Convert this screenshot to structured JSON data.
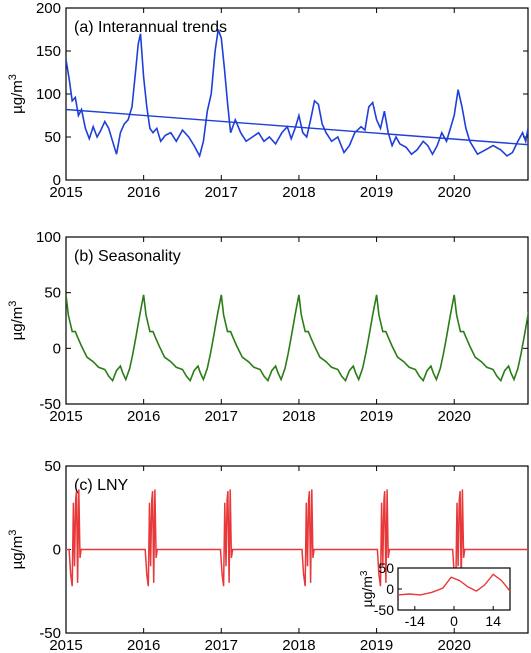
{
  "figure": {
    "ylabel_main": "µg/m",
    "ylabel_sup": "3"
  },
  "chart_data": [
    {
      "type": "line",
      "title": "(a) Interannual trends",
      "ylabel": "µg/m3",
      "xlim": [
        2015,
        2020.95
      ],
      "ylim": [
        0,
        200
      ],
      "xticks": [
        2015,
        2016,
        2017,
        2018,
        2019,
        2020
      ],
      "yticks": [
        0,
        50,
        100,
        150,
        200
      ],
      "series": [
        {
          "color": "#1f3fd8",
          "x": [
            2015.0,
            2015.04,
            2015.08,
            2015.12,
            2015.16,
            2015.2,
            2015.25,
            2015.3,
            2015.35,
            2015.4,
            2015.45,
            2015.5,
            2015.55,
            2015.6,
            2015.65,
            2015.7,
            2015.75,
            2015.8,
            2015.85,
            2015.9,
            2015.93,
            2015.96,
            2016.0,
            2016.04,
            2016.08,
            2016.12,
            2016.17,
            2016.22,
            2016.28,
            2016.35,
            2016.42,
            2016.5,
            2016.58,
            2016.65,
            2016.72,
            2016.77,
            2016.82,
            2016.87,
            2016.92,
            2016.96,
            2017.0,
            2017.04,
            2017.08,
            2017.12,
            2017.18,
            2017.25,
            2017.32,
            2017.4,
            2017.48,
            2017.55,
            2017.62,
            2017.7,
            2017.78,
            2017.85,
            2017.9,
            2017.95,
            2018.0,
            2018.05,
            2018.1,
            2018.15,
            2018.2,
            2018.25,
            2018.3,
            2018.35,
            2018.42,
            2018.5,
            2018.58,
            2018.65,
            2018.72,
            2018.8,
            2018.85,
            2018.9,
            2018.95,
            2019.0,
            2019.05,
            2019.1,
            2019.15,
            2019.2,
            2019.25,
            2019.3,
            2019.38,
            2019.45,
            2019.52,
            2019.6,
            2019.66,
            2019.72,
            2019.78,
            2019.84,
            2019.9,
            2019.95,
            2020.0,
            2020.05,
            2020.1,
            2020.15,
            2020.2,
            2020.3,
            2020.4,
            2020.5,
            2020.6,
            2020.68,
            2020.75,
            2020.82,
            2020.88,
            2020.92,
            2020.95
          ],
          "y": [
            140,
            118,
            92,
            96,
            75,
            82,
            60,
            48,
            62,
            50,
            58,
            68,
            60,
            45,
            30,
            55,
            65,
            70,
            85,
            130,
            158,
            170,
            120,
            85,
            60,
            55,
            60,
            45,
            52,
            55,
            45,
            58,
            50,
            40,
            28,
            45,
            80,
            100,
            150,
            175,
            165,
            130,
            90,
            55,
            70,
            55,
            45,
            50,
            55,
            45,
            50,
            42,
            55,
            62,
            48,
            60,
            75,
            55,
            50,
            70,
            92,
            88,
            65,
            55,
            45,
            50,
            32,
            40,
            55,
            62,
            58,
            85,
            90,
            70,
            60,
            80,
            55,
            40,
            50,
            42,
            38,
            30,
            35,
            45,
            40,
            30,
            40,
            55,
            45,
            60,
            75,
            105,
            85,
            60,
            45,
            30,
            35,
            40,
            35,
            28,
            32,
            45,
            55,
            45,
            60
          ]
        },
        {
          "name": "",
          "color": "#1f3fd8",
          "x": [
            2015.0,
            2020.95
          ],
          "y": [
            82,
            41
          ]
        }
      ]
    },
    {
      "type": "line",
      "title": "(b) Seasonality",
      "ylabel": "µg/m3",
      "xlim": [
        2015,
        2020.95
      ],
      "ylim": [
        -50,
        100
      ],
      "xticks": [
        2015,
        2016,
        2017,
        2018,
        2019,
        2020
      ],
      "yticks": [
        -50,
        0,
        50,
        100
      ],
      "series": [
        {
          "color": "#2a7d16",
          "period_cycle_x": [
            0.0,
            0.03,
            0.08,
            0.12,
            0.15,
            0.2,
            0.27,
            0.35,
            0.42,
            0.5,
            0.55,
            0.6,
            0.65,
            0.7,
            0.73,
            0.77,
            0.82,
            0.86,
            0.9,
            0.95,
            1.0
          ],
          "period_cycle_y": [
            48,
            30,
            15,
            15,
            10,
            2,
            -8,
            -12,
            -17,
            -19,
            -25,
            -29,
            -20,
            -16,
            -22,
            -28,
            -18,
            -5,
            10,
            30,
            48
          ]
        }
      ]
    },
    {
      "type": "line",
      "title": "(c) LNY",
      "ylabel": "µg/m3",
      "xlim": [
        2015,
        2020.95
      ],
      "ylim": [
        -50,
        50
      ],
      "xticks": [
        2015,
        2016,
        2017,
        2018,
        2019,
        2020
      ],
      "yticks": [
        -50,
        0,
        50
      ],
      "lny_centers": [
        2015.13,
        2016.11,
        2017.08,
        2018.13,
        2019.1,
        2020.07
      ],
      "series": [
        {
          "color": "#e8383a",
          "spike_offsets_x": [
            -0.09,
            -0.07,
            -0.05,
            -0.035,
            -0.02,
            -0.005,
            0.005,
            0.02,
            0.035,
            0.05,
            0.065,
            0.09
          ],
          "spike_offsets_y": [
            0,
            -15,
            -22,
            28,
            -10,
            30,
            35,
            -20,
            36,
            -5,
            0,
            0
          ]
        }
      ],
      "inset": {
        "xlim": [
          -20,
          20
        ],
        "ylim": [
          -50,
          50
        ],
        "xtick_labels": [
          "-14",
          "0",
          "14"
        ],
        "xticks": [
          -14,
          0,
          14
        ],
        "ytick_labels": [
          "50",
          "0",
          "-50"
        ],
        "yticks": [
          50,
          0,
          -50
        ],
        "ylabel": "µg/m3",
        "x": [
          -20,
          -16,
          -12,
          -8,
          -4,
          -1,
          2,
          5,
          8,
          11,
          14,
          17,
          20
        ],
        "y": [
          -14,
          -12,
          -14,
          -8,
          2,
          28,
          20,
          5,
          -5,
          10,
          35,
          20,
          -5
        ]
      }
    }
  ]
}
